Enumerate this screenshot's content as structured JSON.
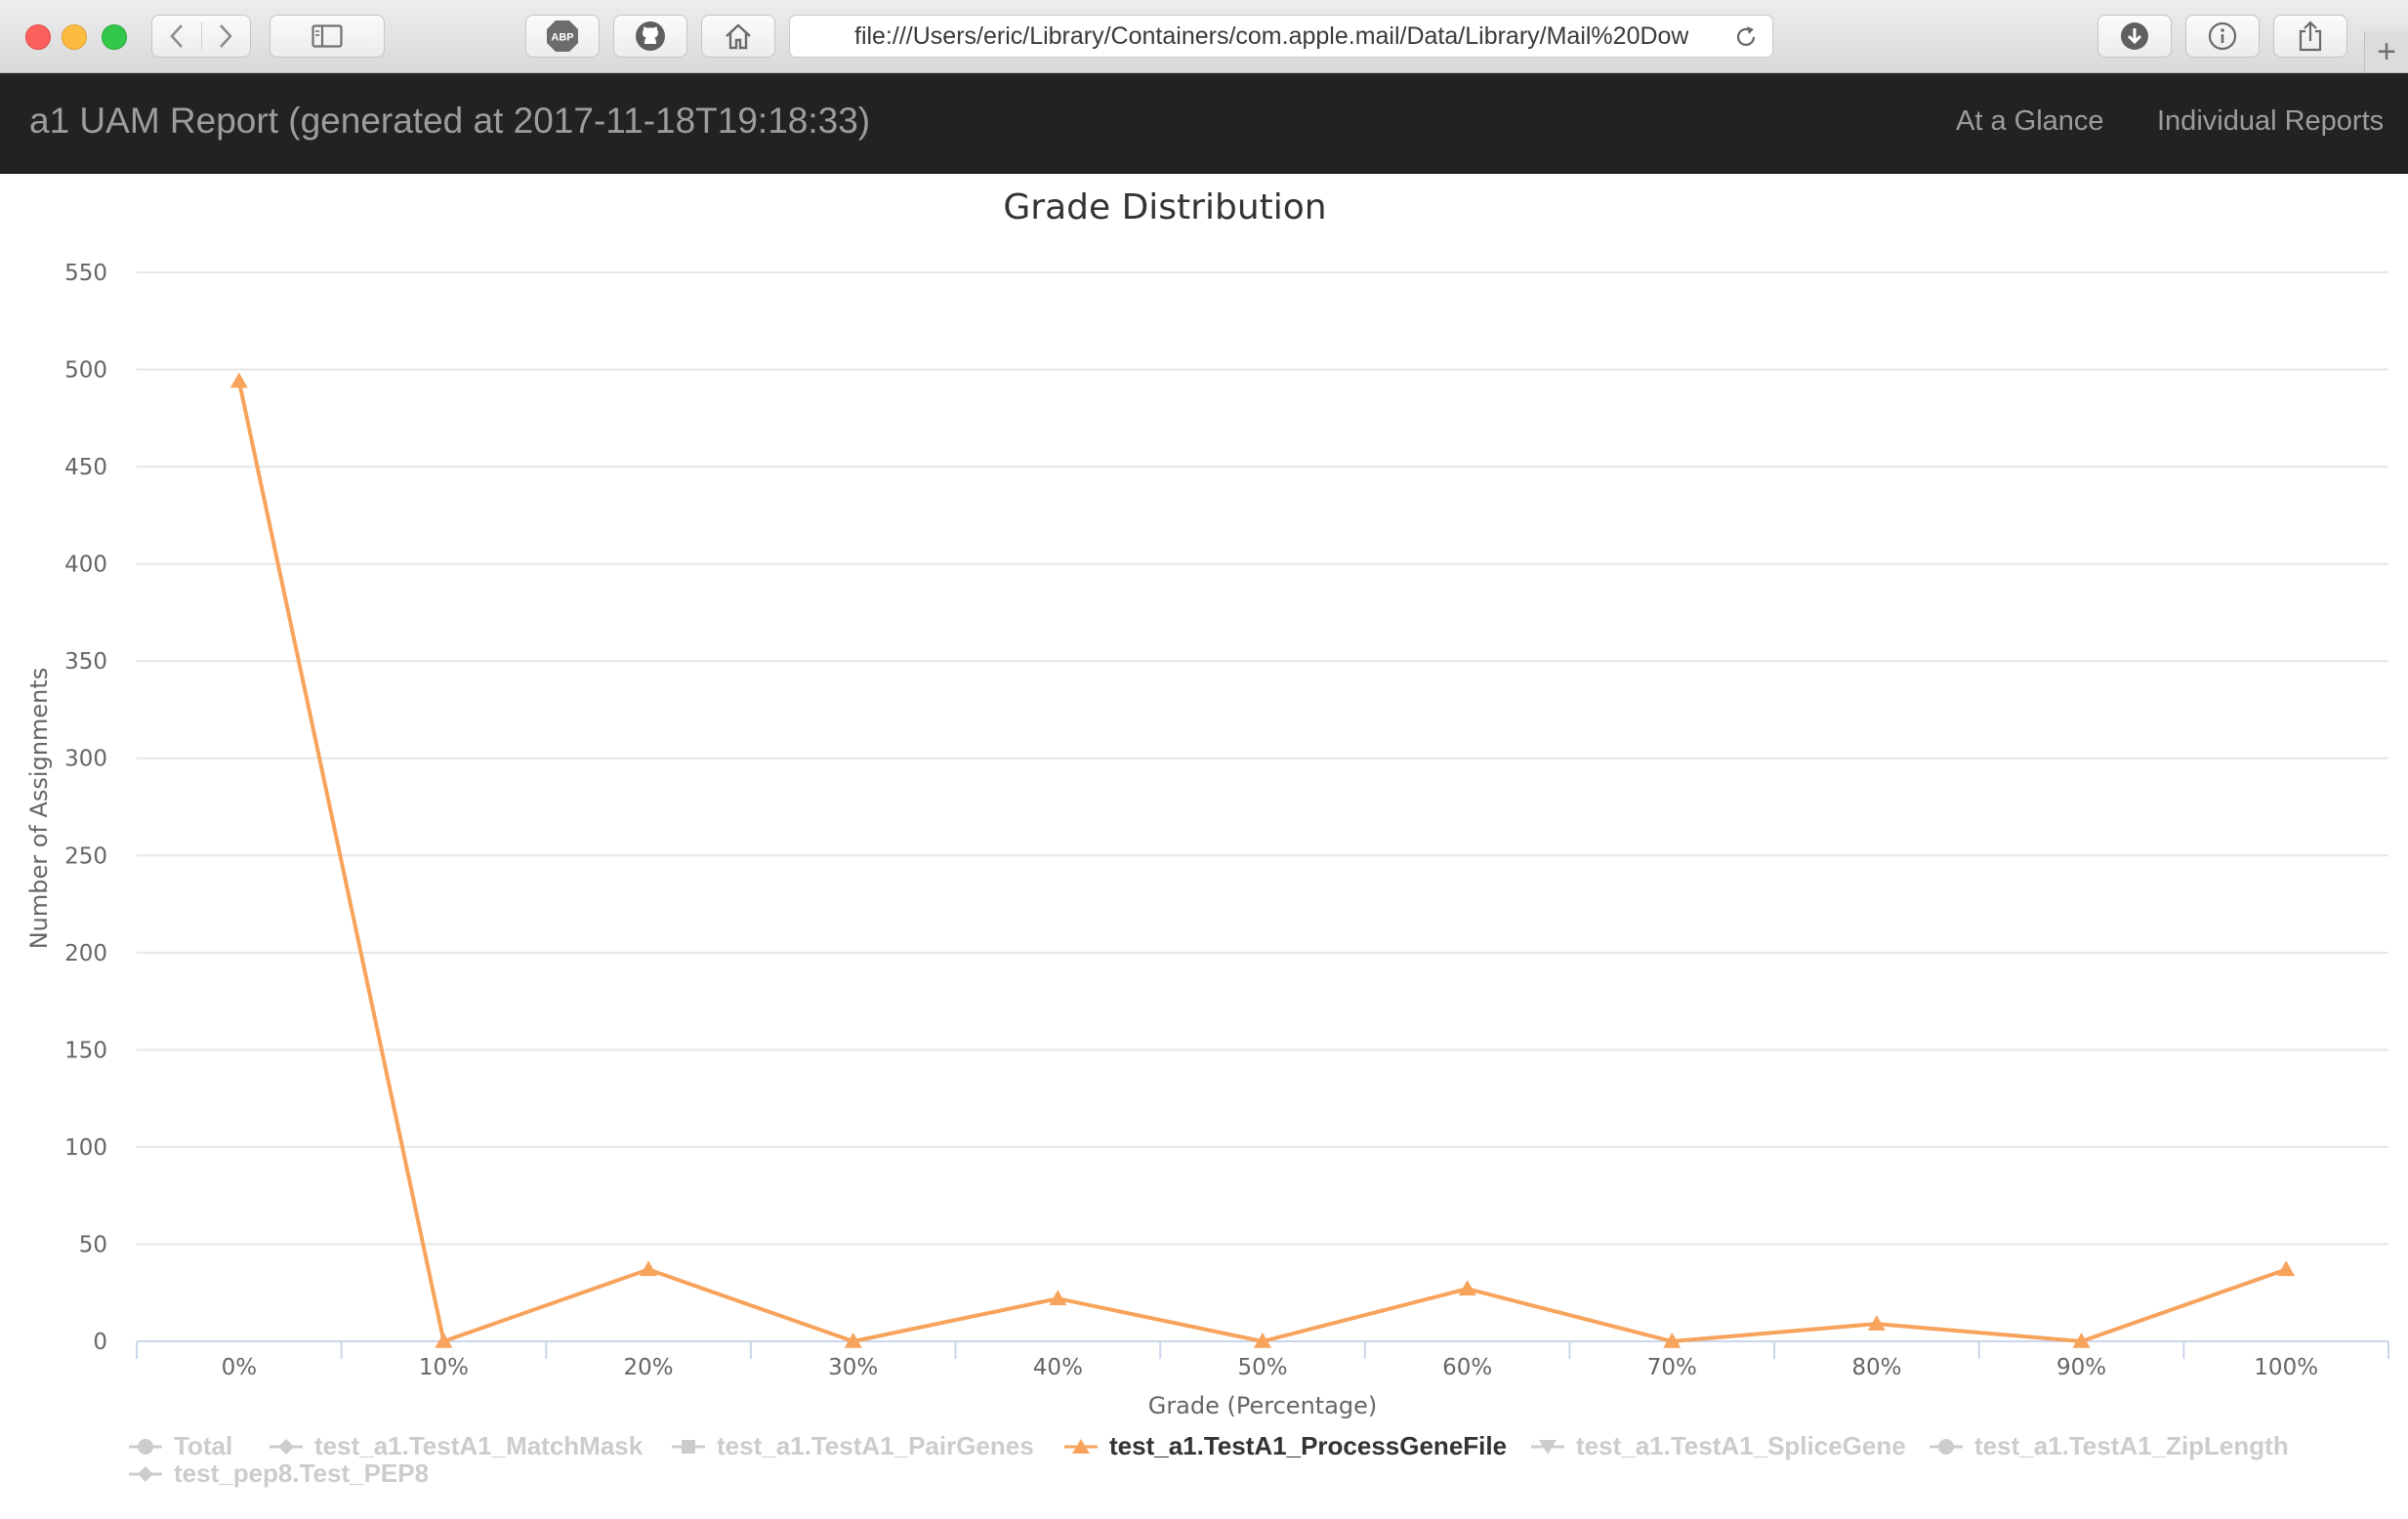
{
  "browser": {
    "url": "file:///Users/eric/Library/Containers/com.apple.mail/Data/Library/Mail%20Dow",
    "toolbar_icons": [
      "back-icon",
      "forward-icon",
      "sidebar-icon",
      "adblock-icon",
      "github-icon",
      "home-icon",
      "reload-icon",
      "download-icon",
      "info-icon",
      "share-icon",
      "new-tab-icon"
    ],
    "adblock_label": "ABP"
  },
  "navbar": {
    "brand": "a1 UAM Report (generated at 2017-11-18T19:18:33)",
    "links": [
      "At a Glance",
      "Individual Reports"
    ]
  },
  "colors": {
    "series_active": "#f7a35c",
    "legend_inactive": "#cccccc",
    "navbar_bg": "#222222",
    "gridline": "#e6e6e6"
  },
  "chart_data": {
    "type": "line",
    "title": "Grade Distribution",
    "xlabel": "Grade (Percentage)",
    "ylabel": "Number of Assignments",
    "categories": [
      "0%",
      "10%",
      "20%",
      "30%",
      "40%",
      "50%",
      "60%",
      "70%",
      "80%",
      "90%",
      "100%"
    ],
    "ylim": [
      0,
      550
    ],
    "yticks": [
      0,
      50,
      100,
      150,
      200,
      250,
      300,
      350,
      400,
      450,
      500,
      550
    ],
    "grid": true,
    "legend_position": "bottom-left",
    "series": [
      {
        "name": "Total",
        "visible": false,
        "marker": "circle"
      },
      {
        "name": "test_a1.TestA1_MatchMask",
        "visible": false,
        "marker": "diamond"
      },
      {
        "name": "test_a1.TestA1_PairGenes",
        "visible": false,
        "marker": "square"
      },
      {
        "name": "test_a1.TestA1_ProcessGeneFile",
        "visible": true,
        "marker": "triangle",
        "values": [
          494,
          0,
          37,
          0,
          22,
          0,
          27,
          0,
          9,
          0,
          37
        ]
      },
      {
        "name": "test_a1.TestA1_SpliceGene",
        "visible": false,
        "marker": "triangle-down"
      },
      {
        "name": "test_a1.TestA1_ZipLength",
        "visible": false,
        "marker": "circle"
      },
      {
        "name": "test_pep8.Test_PEP8",
        "visible": false,
        "marker": "diamond"
      }
    ]
  }
}
